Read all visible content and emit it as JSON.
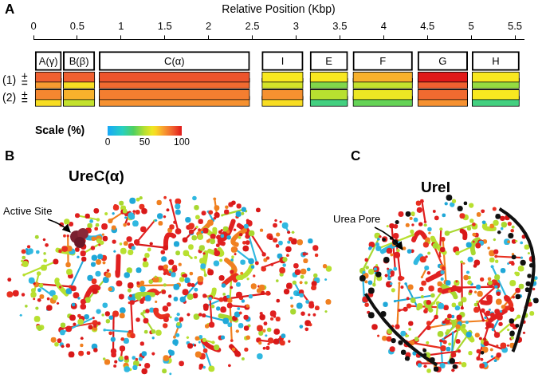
{
  "chart_data": {
    "type": "heatmap",
    "panel": "A",
    "xlabel": "Relative Position (Kbp)",
    "xlim": [
      0,
      5.6
    ],
    "xticks": [
      0,
      0.5,
      1,
      1.5,
      2,
      2.5,
      3,
      3.5,
      4,
      4.5,
      5,
      5.5
    ],
    "genes": [
      {
        "name": "A(γ)",
        "start": 0.02,
        "end": 0.32
      },
      {
        "name": "B(β)",
        "start": 0.34,
        "end": 0.7
      },
      {
        "name": "C(α)",
        "start": 0.75,
        "end": 2.47
      },
      {
        "name": "I",
        "start": 2.61,
        "end": 3.08
      },
      {
        "name": "E",
        "start": 3.16,
        "end": 3.59
      },
      {
        "name": "F",
        "start": 3.65,
        "end": 4.33
      },
      {
        "name": "G",
        "start": 4.39,
        "end": 4.96
      },
      {
        "name": "H",
        "start": 5.01,
        "end": 5.55
      }
    ],
    "rows": [
      {
        "group": "(1)",
        "strand": "+",
        "values": [
          88,
          88,
          90,
          62,
          62,
          72,
          100,
          62
        ]
      },
      {
        "group": "(1)",
        "strand": "=",
        "values": [
          76,
          64,
          86,
          55,
          42,
          52,
          88,
          45
        ]
      },
      {
        "group": "(2)",
        "strand": "+",
        "values": [
          80,
          72,
          82,
          78,
          50,
          60,
          86,
          62
        ]
      },
      {
        "group": "(2)",
        "strand": "=",
        "values": [
          64,
          52,
          78,
          64,
          30,
          38,
          78,
          30
        ]
      }
    ],
    "colorbar": {
      "title": "Scale (%)",
      "range": [
        0,
        100
      ],
      "ticks": [
        0,
        50,
        100
      ]
    }
  },
  "structures": [
    {
      "panel": "B",
      "title": "UreC(α)",
      "annotation": "Active Site"
    },
    {
      "panel": "C",
      "title": "UreI",
      "annotation": "Urea Pore"
    }
  ]
}
